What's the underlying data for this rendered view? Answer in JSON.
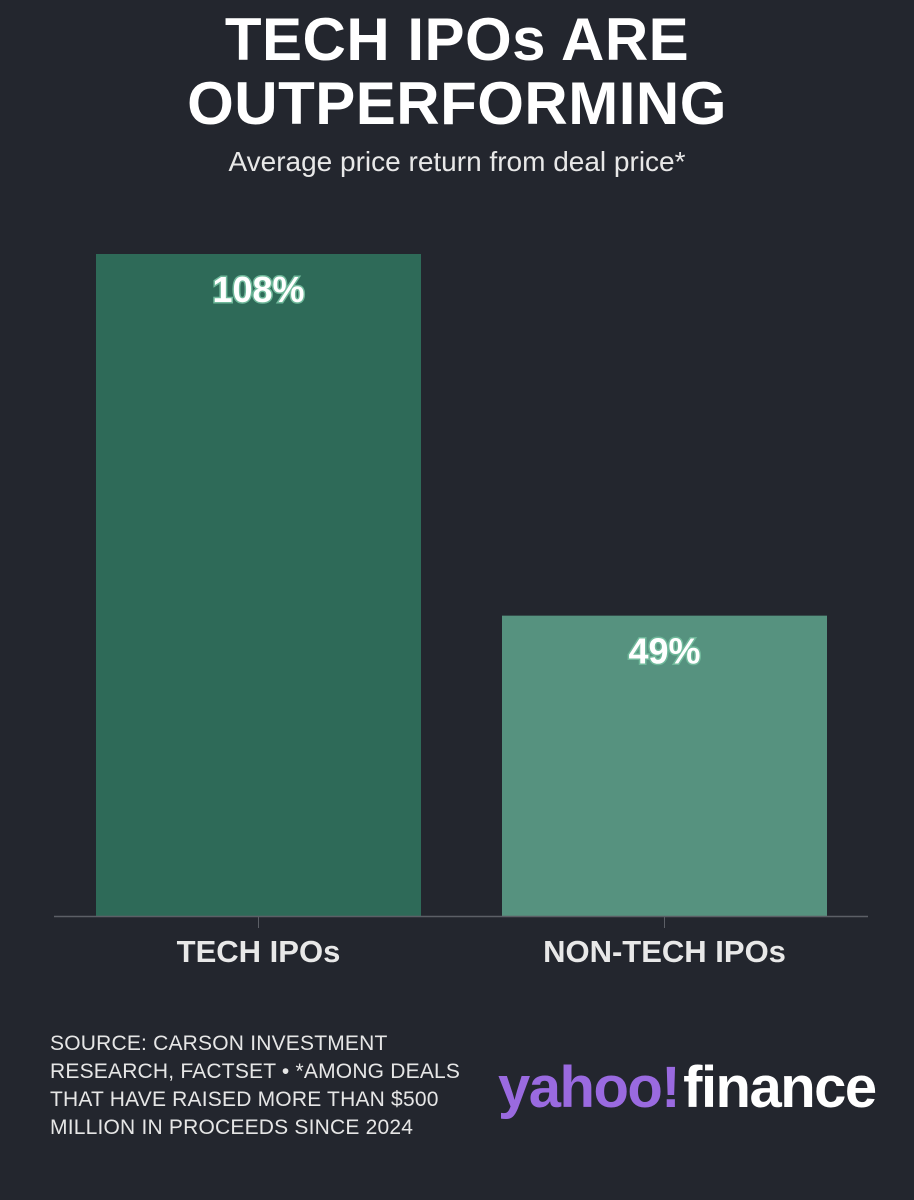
{
  "title_line1": "TECH IPOs ARE",
  "title_line2": "OUTPERFORMING",
  "subtitle": "Average price return from deal price*",
  "source": "SOURCE: CARSON INVESTMENT RESEARCH, FACTSET • *AMONG DEALS THAT HAVE RAISED MORE THAN $500 MILLION IN PROCEEDS SINCE 2024",
  "logo": {
    "yahoo": "yahoo!",
    "finance": "finance"
  },
  "colors": {
    "background": "#23262e",
    "tech_bar": "#2e6a58",
    "nontech_bar": "#56927f",
    "logo_purple": "#9a6ae0"
  },
  "chart_data": {
    "type": "bar",
    "categories": [
      "TECH IPOs",
      "NON-TECH IPOs"
    ],
    "values": [
      108,
      49
    ],
    "value_labels": [
      "108%",
      "49%"
    ],
    "title": "TECH IPOs ARE OUTPERFORMING",
    "subtitle": "Average price return from deal price*",
    "xlabel": "",
    "ylabel": "",
    "ylim": [
      0,
      108
    ],
    "grid": false,
    "legend": "none"
  }
}
